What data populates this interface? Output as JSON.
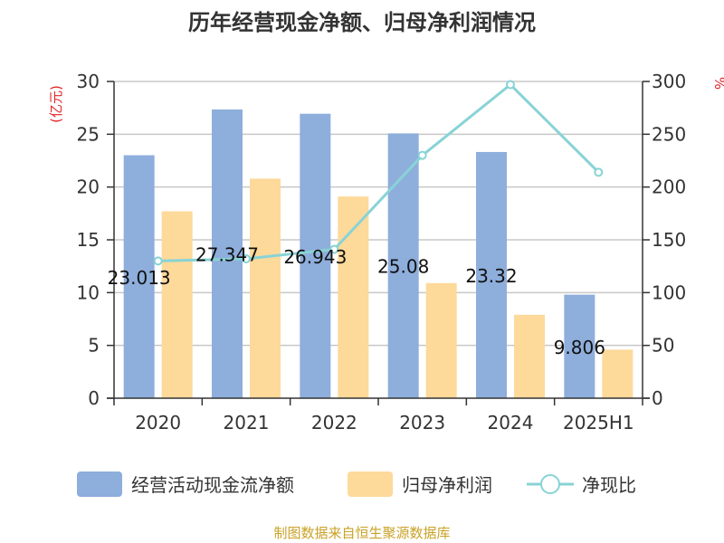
{
  "colors": {
    "cash_flow": "#8eaedc",
    "net_profit": "#fdd99a",
    "ratio_line": "#88d3d6",
    "unit_red": "#e0262b",
    "source_gold": "#c9a227",
    "axis": "#333333",
    "grid": "#c8c8c8"
  },
  "chart_data": {
    "type": "bar",
    "title": "历年经营现金净额、归母净利润情况",
    "categories": [
      "2020",
      "2021",
      "2022",
      "2023",
      "2024",
      "2025H1"
    ],
    "y_left": {
      "label": "(亿元)",
      "range": [
        0,
        30
      ],
      "ticks": [
        "0",
        "5",
        "10",
        "15",
        "20",
        "25",
        "30"
      ]
    },
    "y_right": {
      "label": "%",
      "range": [
        0,
        300
      ],
      "ticks": [
        "0",
        "50",
        "100",
        "150",
        "200",
        "250",
        "300"
      ]
    },
    "grid": true,
    "legend_position": "bottom",
    "series": [
      {
        "name": "经营活动现金流净额",
        "type": "bar",
        "axis": "left",
        "values": [
          23.013,
          27.347,
          26.943,
          25.08,
          23.32,
          9.806
        ],
        "data_labels": [
          "23.013",
          "27.347",
          "26.943",
          "25.08",
          "23.32",
          "9.806"
        ]
      },
      {
        "name": "归母净利润",
        "type": "bar",
        "axis": "left",
        "values": [
          17.7,
          20.8,
          19.1,
          10.9,
          7.9,
          4.6
        ]
      },
      {
        "name": "净现比",
        "type": "line",
        "axis": "right",
        "values": [
          130,
          132,
          141,
          230,
          297,
          214
        ]
      }
    ]
  },
  "source": "制图数据来自恒生聚源数据库"
}
